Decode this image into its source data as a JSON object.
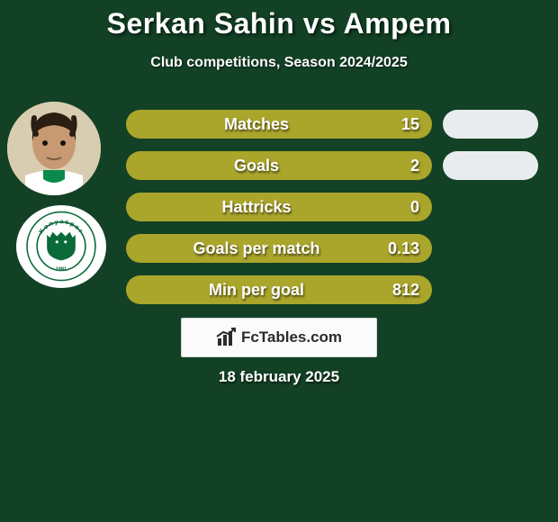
{
  "title": {
    "player1": "Serkan Sahin",
    "vs": "vs",
    "player2": "Ampem"
  },
  "subtitle": "Club competitions, Season 2024/2025",
  "colors": {
    "background": "#124125",
    "pill_left": "#aaa52b",
    "pill_right_filled": "#e9ecef",
    "pill_right_empty": "transparent",
    "text": "#ffffff",
    "box_bg": "#fbfbfb",
    "box_border": "#d8d8d8",
    "badge_green": "#0a6a3a",
    "avatar_skin": "#c89a74",
    "avatar_hair": "#2b1e12",
    "avatar_shirt": "#ffffff",
    "avatar_collar": "#0a8a4a"
  },
  "stats": [
    {
      "label": "Matches",
      "value": "15",
      "right_pill": true
    },
    {
      "label": "Goals",
      "value": "2",
      "right_pill": true
    },
    {
      "label": "Hattricks",
      "value": "0",
      "right_pill": false
    },
    {
      "label": "Goals per match",
      "value": "0.13",
      "right_pill": false
    },
    {
      "label": "Min per goal",
      "value": "812",
      "right_pill": false
    }
  ],
  "branding": {
    "site_name": "FcTables.com"
  },
  "date": "18 february 2025",
  "club": {
    "name": "Konyaspor",
    "year": "1981"
  }
}
